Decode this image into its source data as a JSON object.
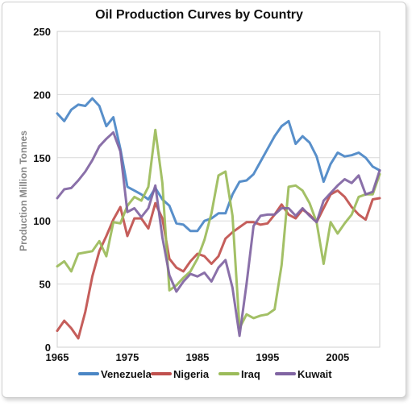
{
  "chart_data": {
    "type": "line",
    "title": "Oil Production Curves by Country",
    "xlabel": "",
    "ylabel": "Production Million Tonnes",
    "xlim": [
      1965,
      2011
    ],
    "ylim": [
      0,
      250
    ],
    "x_ticks": [
      "1965",
      "1975",
      "1985",
      "1995",
      "2005"
    ],
    "y_ticks": [
      "0",
      "50",
      "100",
      "150",
      "200",
      "250"
    ],
    "grid": true,
    "legend": "bottom",
    "x": [
      1965,
      1966,
      1967,
      1968,
      1969,
      1970,
      1971,
      1972,
      1973,
      1974,
      1975,
      1976,
      1977,
      1978,
      1979,
      1980,
      1981,
      1982,
      1983,
      1984,
      1985,
      1986,
      1987,
      1988,
      1989,
      1990,
      1991,
      1992,
      1993,
      1994,
      1995,
      1996,
      1997,
      1998,
      1999,
      2000,
      2001,
      2002,
      2003,
      2004,
      2005,
      2006,
      2007,
      2008,
      2009,
      2010,
      2011
    ],
    "series": [
      {
        "name": "Venezuela",
        "color": "#4a86c5",
        "values": [
          185,
          179,
          188,
          192,
          191,
          197,
          191,
          175,
          182,
          157,
          127,
          124,
          121,
          117,
          126,
          117,
          112,
          98,
          97,
          92,
          92,
          100,
          102,
          106,
          106,
          121,
          131,
          132,
          137,
          147,
          157,
          167,
          175,
          179,
          161,
          167,
          162,
          151,
          131,
          145,
          154,
          151,
          152,
          154,
          150,
          143,
          140
        ]
      },
      {
        "name": "Nigeria",
        "color": "#c0504d",
        "values": [
          13,
          21,
          15,
          7,
          28,
          56,
          76,
          88,
          101,
          111,
          88,
          102,
          102,
          94,
          114,
          102,
          70,
          63,
          60,
          68,
          74,
          72,
          66,
          72,
          86,
          91,
          95,
          99,
          99,
          97,
          98,
          105,
          113,
          105,
          102,
          109,
          105,
          99,
          110,
          121,
          124,
          119,
          111,
          105,
          101,
          117,
          118
        ]
      },
      {
        "name": "Iraq",
        "color": "#9bbb59",
        "values": [
          64,
          68,
          60,
          74,
          75,
          76,
          84,
          72,
          99,
          98,
          112,
          119,
          116,
          127,
          172,
          130,
          45,
          49,
          55,
          60,
          70,
          85,
          106,
          136,
          139,
          104,
          15,
          26,
          23,
          25,
          26,
          30,
          65,
          127,
          128,
          124,
          114,
          99,
          66,
          99,
          90,
          98,
          105,
          119,
          121,
          121,
          137
        ]
      },
      {
        "name": "Kuwait",
        "color": "#8064a2",
        "values": [
          118,
          125,
          126,
          132,
          139,
          148,
          159,
          165,
          170,
          155,
          107,
          110,
          103,
          110,
          128,
          87,
          57,
          44,
          52,
          58,
          56,
          59,
          52,
          63,
          69,
          47,
          9,
          50,
          96,
          104,
          105,
          105,
          110,
          110,
          104,
          110,
          104,
          99,
          116,
          122,
          128,
          133,
          130,
          136,
          121,
          123,
          140
        ]
      }
    ]
  }
}
